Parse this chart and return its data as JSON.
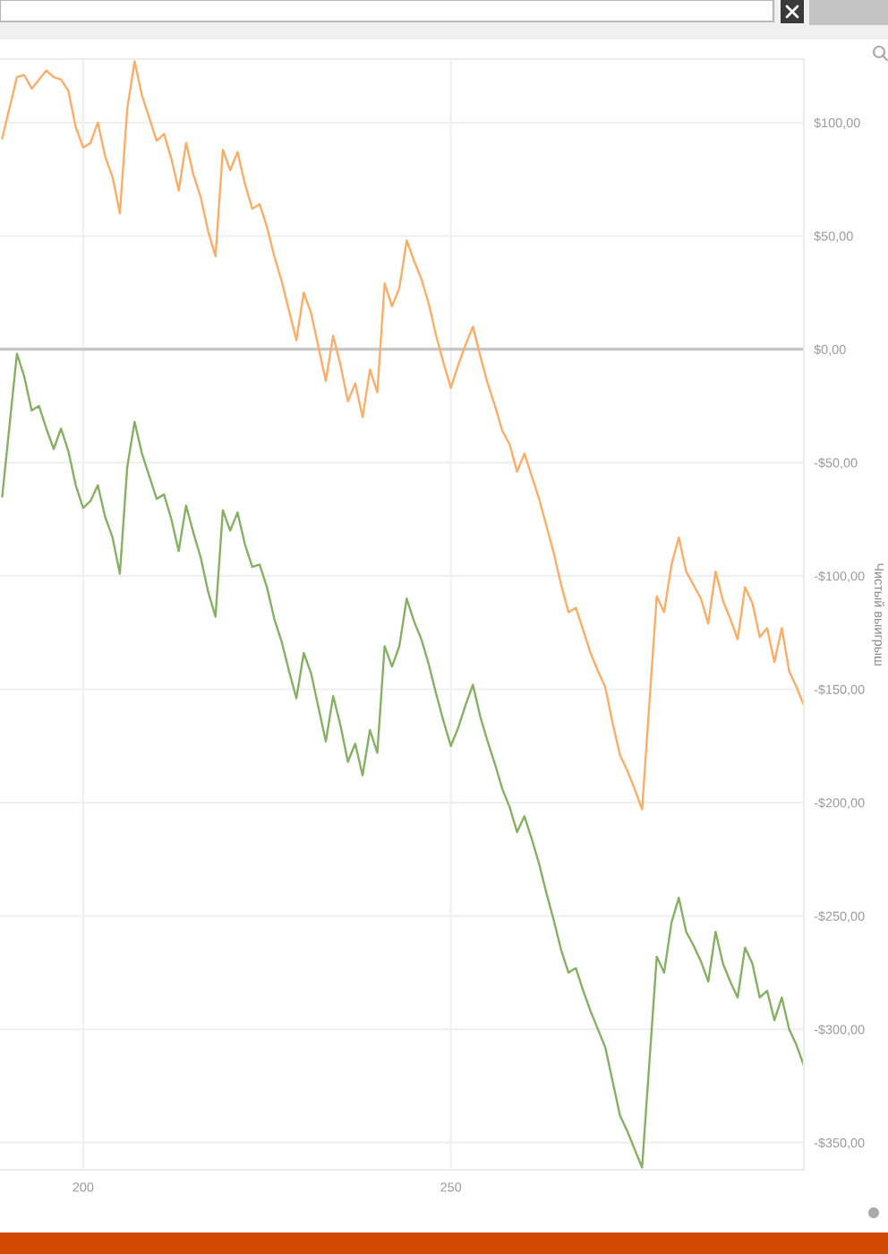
{
  "chart_data": {
    "type": "line",
    "ylabel": "Чистый выигрыш",
    "series": [
      {
        "color": "#fbad66",
        "x": [
          189,
          191,
          192,
          193,
          195,
          196,
          197,
          198,
          199,
          200,
          201,
          202,
          203,
          204,
          205,
          206,
          207,
          208,
          209,
          210,
          211,
          212,
          213,
          214,
          215,
          216,
          217,
          218,
          219,
          220,
          221,
          222,
          223,
          224,
          225,
          226,
          227,
          228,
          229,
          230,
          231,
          232,
          233,
          234,
          235,
          236,
          237,
          238,
          239,
          240,
          241,
          242,
          243,
          244,
          245,
          246,
          247,
          248,
          249,
          250,
          251,
          252,
          253,
          254,
          255,
          256,
          257,
          258,
          259,
          260,
          261,
          262,
          263,
          264,
          265,
          266,
          267,
          268,
          269,
          270,
          271,
          272,
          273,
          274,
          275,
          276,
          278,
          279,
          280,
          281,
          282,
          283,
          284,
          285,
          286,
          287,
          288,
          289,
          290,
          291,
          292,
          293,
          294,
          295,
          296,
          297,
          298
        ],
        "values": [
          93,
          120,
          121,
          115,
          123,
          120,
          119,
          114,
          98,
          89,
          91,
          100,
          85,
          76,
          60,
          106,
          127,
          112,
          102,
          92,
          95,
          84,
          70,
          91,
          77,
          67,
          52,
          41,
          88,
          79,
          87,
          73,
          62,
          64,
          54,
          41,
          30,
          17,
          4,
          25,
          16,
          1,
          -14,
          6,
          -7,
          -23,
          -15,
          -30,
          -9,
          -19,
          29,
          19,
          27,
          48,
          39,
          31,
          20,
          6,
          -6,
          -17,
          -7,
          2,
          10,
          -3,
          -15,
          -25,
          -36,
          -42,
          -54,
          -46,
          -56,
          -66,
          -78,
          -90,
          -104,
          -116,
          -114,
          -124,
          -134,
          -142,
          -149,
          -165,
          -179,
          -186,
          -194,
          -203,
          -109,
          -116,
          -95,
          -83,
          -98,
          -104,
          -110,
          -121,
          -98,
          -111,
          -119,
          -128,
          -105,
          -112,
          -127,
          -123,
          -138,
          -123,
          -142,
          -149,
          -157
        ]
      },
      {
        "color": "#84b060",
        "x": [
          189,
          191,
          192,
          193,
          194,
          195,
          196,
          197,
          198,
          199,
          200,
          201,
          202,
          203,
          204,
          205,
          206,
          207,
          208,
          209,
          210,
          211,
          212,
          213,
          214,
          215,
          216,
          217,
          218,
          219,
          220,
          221,
          222,
          223,
          224,
          225,
          226,
          227,
          228,
          229,
          230,
          231,
          232,
          233,
          234,
          235,
          236,
          237,
          238,
          239,
          240,
          241,
          242,
          243,
          244,
          245,
          246,
          247,
          248,
          249,
          250,
          251,
          252,
          253,
          254,
          255,
          256,
          257,
          258,
          259,
          260,
          261,
          262,
          263,
          264,
          265,
          266,
          267,
          268,
          269,
          270,
          271,
          272,
          273,
          274,
          275,
          276,
          278,
          279,
          280,
          281,
          282,
          283,
          284,
          285,
          286,
          287,
          288,
          289,
          290,
          291,
          292,
          293,
          294,
          295,
          296,
          297,
          298
        ],
        "values": [
          -65,
          -2,
          -12,
          -27,
          -25,
          -35,
          -44,
          -35,
          -45,
          -60,
          -70,
          -67,
          -60,
          -74,
          -83,
          -99,
          -52,
          -32,
          -46,
          -56,
          -66,
          -64,
          -75,
          -89,
          -69,
          -81,
          -92,
          -107,
          -118,
          -71,
          -80,
          -72,
          -86,
          -96,
          -95,
          -105,
          -119,
          -129,
          -142,
          -154,
          -134,
          -143,
          -158,
          -173,
          -153,
          -166,
          -182,
          -174,
          -188,
          -168,
          -178,
          -131,
          -140,
          -131,
          -110,
          -120,
          -128,
          -139,
          -152,
          -164,
          -175,
          -167,
          -157,
          -148,
          -162,
          -173,
          -183,
          -194,
          -202,
          -213,
          -206,
          -216,
          -227,
          -240,
          -252,
          -265,
          -275,
          -273,
          -283,
          -292,
          -300,
          -308,
          -323,
          -338,
          -345,
          -353,
          -361,
          -268,
          -275,
          -253,
          -242,
          -257,
          -263,
          -270,
          -279,
          -257,
          -271,
          -279,
          -286,
          -264,
          -271,
          -286,
          -283,
          -296,
          -286,
          -300,
          -307,
          -316
        ]
      }
    ],
    "xlim": [
      188.7,
      298
    ],
    "xticks": [
      200,
      250
    ],
    "ylim": [
      -362,
      128
    ],
    "yticks": [
      {
        "value": -350,
        "label": "-$350,00"
      },
      {
        "value": -300,
        "label": "-$300,00"
      },
      {
        "value": -250,
        "label": "-$250,00"
      },
      {
        "value": -200,
        "label": "-$200,00"
      },
      {
        "value": -150,
        "label": "-$150,00"
      },
      {
        "value": -100,
        "label": "-$100,00"
      },
      {
        "value": -50,
        "label": "-$50,00"
      },
      {
        "value": 0,
        "label": "$0,00"
      },
      {
        "value": 50,
        "label": "$50,00"
      },
      {
        "value": 100,
        "label": "$100,00"
      }
    ],
    "grid": true,
    "ref_lines": [
      {
        "axis": "y",
        "value": 0,
        "color": "#c4c4c4"
      }
    ]
  }
}
